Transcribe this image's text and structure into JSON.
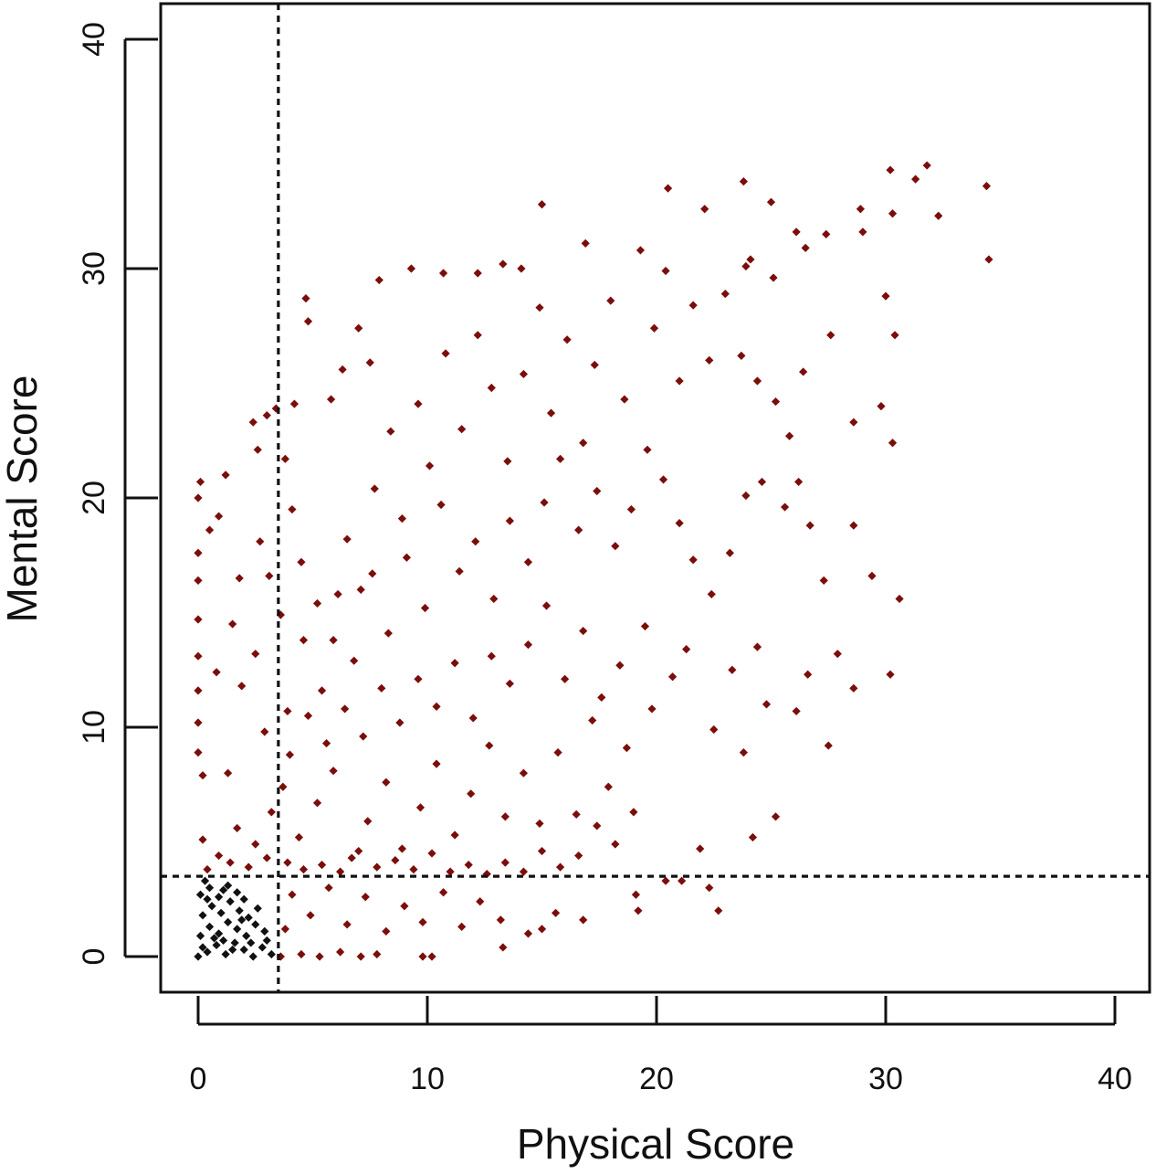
{
  "chart_data": {
    "type": "scatter",
    "title": "",
    "xlabel": "Physical Score",
    "ylabel": "Mental Score",
    "xlim": [
      -1.5,
      41.5
    ],
    "ylim": [
      -1.5,
      41.5
    ],
    "x_ticks": [
      0,
      10,
      20,
      30,
      40
    ],
    "y_ticks": [
      0,
      10,
      20,
      30,
      40
    ],
    "x_tick_labels": [
      "0",
      "10",
      "20",
      "30",
      "40"
    ],
    "y_tick_labels": [
      "0",
      "10",
      "20",
      "30",
      "40"
    ],
    "grid": false,
    "legend": "none",
    "reference_lines": {
      "vertical_x": 3.5,
      "horizontal_y": 3.5
    },
    "series": [
      {
        "color": "#7b0d0b",
        "marker": "diamond",
        "description_region": "points with physical or mental score at or above 3.5",
        "points": [
          [
            34.4,
            33.6
          ],
          [
            34.5,
            30.4
          ],
          [
            31.8,
            34.5
          ],
          [
            31.3,
            33.9
          ],
          [
            30.2,
            34.3
          ],
          [
            30.3,
            32.4
          ],
          [
            32.3,
            32.3
          ],
          [
            28.9,
            32.6
          ],
          [
            29.0,
            31.6
          ],
          [
            27.4,
            31.5
          ],
          [
            26.5,
            30.9
          ],
          [
            26.1,
            31.6
          ],
          [
            25.0,
            32.9
          ],
          [
            23.8,
            33.8
          ],
          [
            20.5,
            33.5
          ],
          [
            22.1,
            32.6
          ],
          [
            24.1,
            30.4
          ],
          [
            23.9,
            30.1
          ],
          [
            25.1,
            29.6
          ],
          [
            15.0,
            32.8
          ],
          [
            16.9,
            31.1
          ],
          [
            13.3,
            30.2
          ],
          [
            14.1,
            30.0
          ],
          [
            12.2,
            29.8
          ],
          [
            9.3,
            30.0
          ],
          [
            10.7,
            29.8
          ],
          [
            7.9,
            29.5
          ],
          [
            4.7,
            28.7
          ],
          [
            4.8,
            27.7
          ],
          [
            7.0,
            27.4
          ],
          [
            6.3,
            25.6
          ],
          [
            7.5,
            25.9
          ],
          [
            5.8,
            24.3
          ],
          [
            4.2,
            24.1
          ],
          [
            3.4,
            23.9
          ],
          [
            3.0,
            23.6
          ],
          [
            2.6,
            22.1
          ],
          [
            2.4,
            23.3
          ],
          [
            1.2,
            21.0
          ],
          [
            0.1,
            20.7
          ],
          [
            0.0,
            20.0
          ],
          [
            0.0,
            17.6
          ],
          [
            0.0,
            16.4
          ],
          [
            0.0,
            14.7
          ],
          [
            0.0,
            13.1
          ],
          [
            0.0,
            11.6
          ],
          [
            0.0,
            10.2
          ],
          [
            0.0,
            8.9
          ],
          [
            0.2,
            7.9
          ],
          [
            1.3,
            8.0
          ],
          [
            0.5,
            18.6
          ],
          [
            0.9,
            19.2
          ],
          [
            1.8,
            16.5
          ],
          [
            1.5,
            14.5
          ],
          [
            0.8,
            12.4
          ],
          [
            1.9,
            11.8
          ],
          [
            2.7,
            18.1
          ],
          [
            3.1,
            16.6
          ],
          [
            2.5,
            13.2
          ],
          [
            2.9,
            9.8
          ],
          [
            3.8,
            21.7
          ],
          [
            4.1,
            19.5
          ],
          [
            4.5,
            17.2
          ],
          [
            5.2,
            15.4
          ],
          [
            5.9,
            13.8
          ],
          [
            6.5,
            18.2
          ],
          [
            7.1,
            16.0
          ],
          [
            7.7,
            20.4
          ],
          [
            8.4,
            22.9
          ],
          [
            8.9,
            19.1
          ],
          [
            9.6,
            24.1
          ],
          [
            10.1,
            21.4
          ],
          [
            10.8,
            26.3
          ],
          [
            11.5,
            23.0
          ],
          [
            12.2,
            27.1
          ],
          [
            12.8,
            24.8
          ],
          [
            13.5,
            21.6
          ],
          [
            14.2,
            25.4
          ],
          [
            14.9,
            28.3
          ],
          [
            15.4,
            23.7
          ],
          [
            16.1,
            26.9
          ],
          [
            16.8,
            22.4
          ],
          [
            17.3,
            25.8
          ],
          [
            18.0,
            28.6
          ],
          [
            18.6,
            24.3
          ],
          [
            19.3,
            30.8
          ],
          [
            19.9,
            27.4
          ],
          [
            20.4,
            29.9
          ],
          [
            21.0,
            25.1
          ],
          [
            21.6,
            28.4
          ],
          [
            22.3,
            26.0
          ],
          [
            23.0,
            28.9
          ],
          [
            23.7,
            26.2
          ],
          [
            24.4,
            25.1
          ],
          [
            25.2,
            24.2
          ],
          [
            25.8,
            22.7
          ],
          [
            26.4,
            25.5
          ],
          [
            27.6,
            27.1
          ],
          [
            28.6,
            23.3
          ],
          [
            29.8,
            24.0
          ],
          [
            30.3,
            22.4
          ],
          [
            30.0,
            28.8
          ],
          [
            30.4,
            27.1
          ],
          [
            29.4,
            16.6
          ],
          [
            28.6,
            18.8
          ],
          [
            30.6,
            15.6
          ],
          [
            27.3,
            16.4
          ],
          [
            26.7,
            18.8
          ],
          [
            26.2,
            20.7
          ],
          [
            25.6,
            19.6
          ],
          [
            24.6,
            20.7
          ],
          [
            23.9,
            20.1
          ],
          [
            23.2,
            17.6
          ],
          [
            22.4,
            15.8
          ],
          [
            21.6,
            17.3
          ],
          [
            21.0,
            18.9
          ],
          [
            20.3,
            20.8
          ],
          [
            19.6,
            22.1
          ],
          [
            18.9,
            19.5
          ],
          [
            18.2,
            17.9
          ],
          [
            17.4,
            20.3
          ],
          [
            16.6,
            18.6
          ],
          [
            15.8,
            21.7
          ],
          [
            15.1,
            19.8
          ],
          [
            14.4,
            17.2
          ],
          [
            13.6,
            19.0
          ],
          [
            12.9,
            15.6
          ],
          [
            12.1,
            18.1
          ],
          [
            11.4,
            16.8
          ],
          [
            10.6,
            19.7
          ],
          [
            9.9,
            15.2
          ],
          [
            9.1,
            17.4
          ],
          [
            8.3,
            14.1
          ],
          [
            7.6,
            16.7
          ],
          [
            6.8,
            12.9
          ],
          [
            6.1,
            15.8
          ],
          [
            5.4,
            11.6
          ],
          [
            4.6,
            13.8
          ],
          [
            3.9,
            10.7
          ],
          [
            3.6,
            14.9
          ],
          [
            30.2,
            12.3
          ],
          [
            28.6,
            11.7
          ],
          [
            27.5,
            9.2
          ],
          [
            27.9,
            13.2
          ],
          [
            26.6,
            12.3
          ],
          [
            26.1,
            10.7
          ],
          [
            25.2,
            6.1
          ],
          [
            24.4,
            13.5
          ],
          [
            24.2,
            5.2
          ],
          [
            23.8,
            8.9
          ],
          [
            24.8,
            11.0
          ],
          [
            23.3,
            12.5
          ],
          [
            22.7,
            2.0
          ],
          [
            22.3,
            3.0
          ],
          [
            21.9,
            4.7
          ],
          [
            22.5,
            9.9
          ],
          [
            21.1,
            3.3
          ],
          [
            20.4,
            3.3
          ],
          [
            19.2,
            2.0
          ],
          [
            19.1,
            2.7
          ],
          [
            20.7,
            12.2
          ],
          [
            21.3,
            13.4
          ],
          [
            19.8,
            10.8
          ],
          [
            18.7,
            9.1
          ],
          [
            17.9,
            7.4
          ],
          [
            17.2,
            10.3
          ],
          [
            16.5,
            6.2
          ],
          [
            15.7,
            8.9
          ],
          [
            14.9,
            5.8
          ],
          [
            14.2,
            8.0
          ],
          [
            13.4,
            6.1
          ],
          [
            12.7,
            9.2
          ],
          [
            11.9,
            7.1
          ],
          [
            11.2,
            5.3
          ],
          [
            10.4,
            8.4
          ],
          [
            9.7,
            6.5
          ],
          [
            8.9,
            4.7
          ],
          [
            8.2,
            7.6
          ],
          [
            7.4,
            5.9
          ],
          [
            6.7,
            4.3
          ],
          [
            5.9,
            8.1
          ],
          [
            5.2,
            6.7
          ],
          [
            4.4,
            5.2
          ],
          [
            3.7,
            7.4
          ],
          [
            3.2,
            6.3
          ],
          [
            2.5,
            4.9
          ],
          [
            1.7,
            5.6
          ],
          [
            0.9,
            4.4
          ],
          [
            0.2,
            5.1
          ],
          [
            0.4,
            3.8
          ],
          [
            1.4,
            4.1
          ],
          [
            2.2,
            3.9
          ],
          [
            3.0,
            4.3
          ],
          [
            3.6,
            0.0
          ],
          [
            4.5,
            0.1
          ],
          [
            5.3,
            0.0
          ],
          [
            6.2,
            0.2
          ],
          [
            7.1,
            0.0
          ],
          [
            7.8,
            0.1
          ],
          [
            9.8,
            0.0
          ],
          [
            10.2,
            0.0
          ],
          [
            13.3,
            0.4
          ],
          [
            16.8,
            1.6
          ],
          [
            15.6,
            1.9
          ],
          [
            15.0,
            1.2
          ],
          [
            14.4,
            1.0
          ],
          [
            13.2,
            1.6
          ],
          [
            12.3,
            2.4
          ],
          [
            11.5,
            1.3
          ],
          [
            10.7,
            2.8
          ],
          [
            9.8,
            1.5
          ],
          [
            9.0,
            2.2
          ],
          [
            8.2,
            1.1
          ],
          [
            7.3,
            2.6
          ],
          [
            6.5,
            1.4
          ],
          [
            5.7,
            3.0
          ],
          [
            4.9,
            1.8
          ],
          [
            4.1,
            2.7
          ],
          [
            3.8,
            1.2
          ],
          [
            19.5,
            14.4
          ],
          [
            18.4,
            12.7
          ],
          [
            17.6,
            11.3
          ],
          [
            16.8,
            14.2
          ],
          [
            16.0,
            12.1
          ],
          [
            15.2,
            15.3
          ],
          [
            14.4,
            13.6
          ],
          [
            13.6,
            11.9
          ],
          [
            12.8,
            13.1
          ],
          [
            12.0,
            10.4
          ],
          [
            11.2,
            12.8
          ],
          [
            10.4,
            10.9
          ],
          [
            9.6,
            12.1
          ],
          [
            8.8,
            10.2
          ],
          [
            8.0,
            11.7
          ],
          [
            7.2,
            9.6
          ],
          [
            6.4,
            10.8
          ],
          [
            5.6,
            9.3
          ],
          [
            4.8,
            10.5
          ],
          [
            4.0,
            8.8
          ],
          [
            19.0,
            6.3
          ],
          [
            18.2,
            4.9
          ],
          [
            17.4,
            5.7
          ],
          [
            16.6,
            4.4
          ],
          [
            15.8,
            3.9
          ],
          [
            15.0,
            4.6
          ],
          [
            14.2,
            3.7
          ],
          [
            13.4,
            4.1
          ],
          [
            12.6,
            3.6
          ],
          [
            11.8,
            4.0
          ],
          [
            11.0,
            3.7
          ],
          [
            10.2,
            4.5
          ],
          [
            9.4,
            3.8
          ],
          [
            8.6,
            4.2
          ],
          [
            7.8,
            3.9
          ],
          [
            7.0,
            4.6
          ],
          [
            6.2,
            3.7
          ],
          [
            5.4,
            4.0
          ],
          [
            4.6,
            3.8
          ],
          [
            3.9,
            4.1
          ]
        ]
      },
      {
        "color": "#111111",
        "marker": "diamond",
        "description_region": "points with both scores below 3.5",
        "points": [
          [
            0.0,
            0.0
          ],
          [
            0.4,
            0.2
          ],
          [
            0.8,
            0.5
          ],
          [
            1.2,
            0.1
          ],
          [
            1.6,
            0.6
          ],
          [
            2.0,
            0.3
          ],
          [
            2.4,
            0.0
          ],
          [
            2.8,
            0.4
          ],
          [
            3.2,
            0.1
          ],
          [
            0.1,
            0.9
          ],
          [
            0.5,
            1.3
          ],
          [
            0.9,
            1.0
          ],
          [
            1.3,
            1.5
          ],
          [
            1.7,
            1.2
          ],
          [
            2.1,
            0.9
          ],
          [
            2.5,
            1.4
          ],
          [
            2.9,
            1.1
          ],
          [
            0.2,
            1.8
          ],
          [
            0.6,
            2.2
          ],
          [
            1.0,
            1.9
          ],
          [
            1.4,
            2.4
          ],
          [
            1.8,
            2.0
          ],
          [
            2.2,
            1.7
          ],
          [
            2.6,
            2.1
          ],
          [
            0.1,
            2.7
          ],
          [
            0.5,
            3.0
          ],
          [
            0.9,
            2.6
          ],
          [
            1.3,
            3.1
          ],
          [
            1.7,
            2.8
          ],
          [
            0.3,
            3.3
          ],
          [
            2.0,
            2.5
          ],
          [
            0.7,
            0.8
          ],
          [
            1.1,
            0.7
          ],
          [
            3.0,
            0.7
          ],
          [
            0.2,
            0.4
          ],
          [
            1.5,
            0.3
          ],
          [
            2.3,
            0.6
          ],
          [
            1.9,
            1.6
          ],
          [
            0.4,
            2.5
          ],
          [
            1.1,
            2.9
          ]
        ]
      }
    ]
  }
}
